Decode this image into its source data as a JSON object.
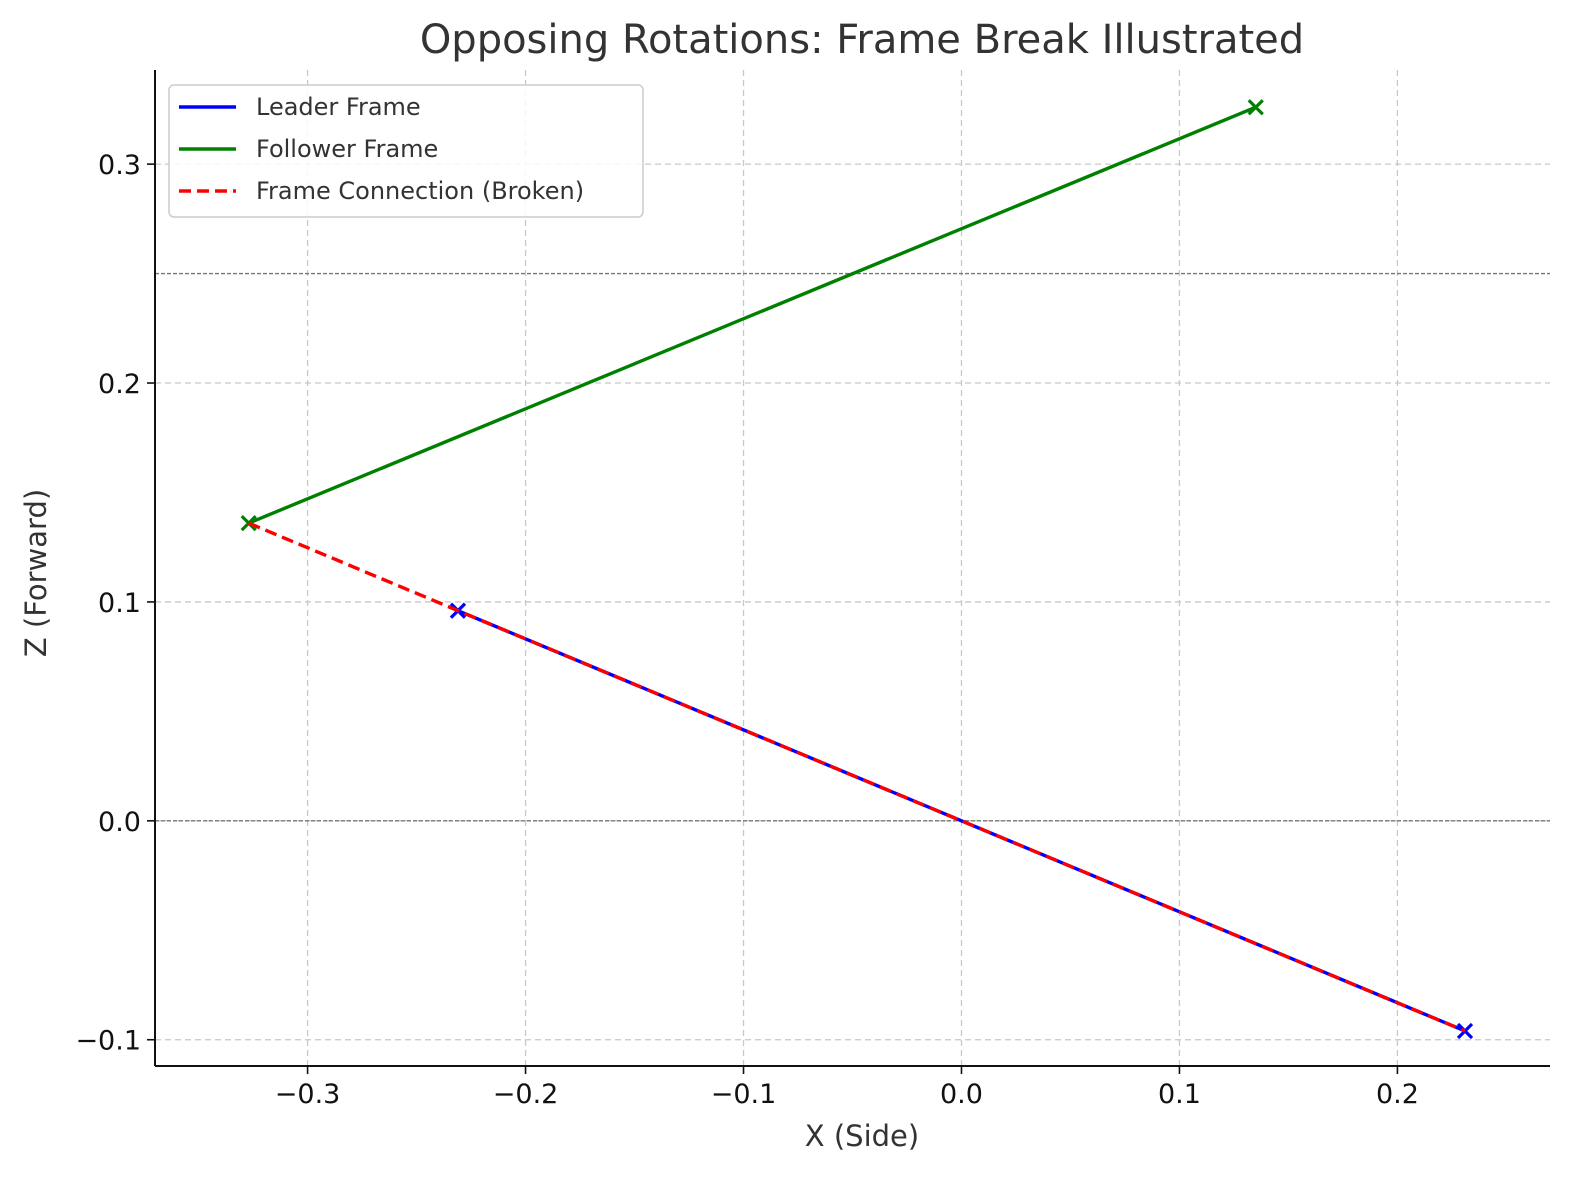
{
  "chart_data": {
    "type": "line",
    "title": "Opposing Rotations: Frame Break Illustrated",
    "xlabel": "X (Side)",
    "ylabel": "Z (Forward)",
    "xlim": [
      -0.37,
      0.27
    ],
    "ylim": [
      -0.112,
      0.343
    ],
    "xticks": [
      -0.3,
      -0.2,
      -0.1,
      0.0,
      0.1,
      0.2
    ],
    "yticks": [
      -0.1,
      0.0,
      0.1,
      0.2,
      0.3
    ],
    "xtick_labels": [
      "−0.3",
      "−0.2",
      "−0.1",
      "0.0",
      "0.1",
      "0.2"
    ],
    "ytick_labels": [
      "−0.1",
      "0.0",
      "0.1",
      "0.2",
      "0.3"
    ],
    "grid": true,
    "reference_lines_y": [
      0.0,
      0.25
    ],
    "legend_position": "top-left",
    "series": [
      {
        "name": "Leader Frame",
        "color": "#0000ff",
        "dash": "solid",
        "marker": "x",
        "points": [
          [
            -0.231,
            0.096
          ],
          [
            0.231,
            -0.096
          ]
        ]
      },
      {
        "name": "Follower Frame",
        "color": "#008000",
        "dash": "solid",
        "marker": "x",
        "points": [
          [
            -0.327,
            0.136
          ],
          [
            0.135,
            0.326
          ]
        ]
      },
      {
        "name": "Frame Connection (Broken)",
        "color": "#ff0000",
        "dash": "dashed",
        "marker": "none",
        "points": [
          [
            -0.327,
            0.136
          ],
          [
            -0.231,
            0.096
          ],
          [
            0.231,
            -0.096
          ]
        ]
      }
    ]
  }
}
